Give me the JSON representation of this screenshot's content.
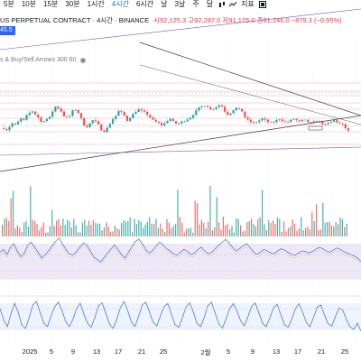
{
  "toolbar": {
    "timeframes": [
      {
        "label": "5분",
        "active": false
      },
      {
        "label": "10분",
        "active": false
      },
      {
        "label": "15분",
        "active": false
      },
      {
        "label": "30분",
        "active": false
      },
      {
        "label": "1시간",
        "active": false
      },
      {
        "label": "4시간",
        "active": true
      },
      {
        "label": "6시간",
        "active": false
      },
      {
        "label": "날",
        "active": false
      },
      {
        "label": "3날",
        "active": false
      },
      {
        "label": "주",
        "active": false
      },
      {
        "label": "달",
        "active": false
      }
    ],
    "indicators_label": "지표",
    "icons": [
      "bar-style-icon",
      "indicators-icon",
      "templates-icon"
    ]
  },
  "header": {
    "title": "US PERPETUAL CONTRACT · 4시간 · BINANCE",
    "ohlc": "시92,125.3  고92,287.0  저91,176.0  종91,246.0  −879.3 (−0.95%)",
    "price_badge": "45.5",
    "indicator_label": "s & Buy/Sell Arrows 300 60",
    "indicator_icon": "eye-icon"
  },
  "colors": {
    "up": "#26a69a",
    "down": "#ef5350",
    "trendline": "#3a3a3a",
    "channel": "#7e57c2",
    "hline": "#f7a8b8",
    "rsi_line": "#5b7fd8",
    "stoch_line": "#4a7bd4",
    "band_fill": "#ede7f6",
    "accent": "#2962ff"
  },
  "chart_data": {
    "type": "candlestick",
    "xaxis_labels": [
      "2025",
      "5",
      "9",
      "13",
      "17",
      "21",
      "25",
      "2월",
      "5",
      "9",
      "13",
      "17",
      "21",
      "25"
    ],
    "candle_trend": [
      93,
      92,
      94,
      96,
      95,
      97,
      99,
      98,
      101,
      103,
      104,
      102,
      100,
      97,
      98,
      99,
      100,
      104,
      107,
      106,
      104,
      101,
      100,
      101,
      104,
      105,
      103,
      99,
      95,
      94,
      96,
      98,
      97,
      95,
      92,
      91,
      93,
      96,
      99,
      101,
      104,
      103,
      101,
      98,
      100,
      102,
      104,
      105,
      104,
      103,
      102,
      100,
      98,
      97,
      96,
      95,
      96,
      98,
      99,
      97,
      96,
      96,
      97,
      98,
      99,
      100,
      102,
      104,
      106,
      107,
      108,
      107,
      105,
      106,
      107,
      108,
      107,
      104,
      102,
      103,
      105,
      106,
      105,
      104,
      100,
      98,
      97,
      96,
      97,
      98,
      99,
      98,
      97,
      96,
      97,
      98,
      99,
      98,
      97,
      97,
      98,
      99,
      98,
      97,
      98,
      98,
      97,
      96,
      97,
      98,
      97,
      96,
      95,
      96,
      97,
      98,
      97,
      96,
      95,
      93,
      91
    ],
    "rsi": [
      48,
      52,
      45,
      55,
      60,
      50,
      42,
      47,
      58,
      62,
      55,
      48,
      40,
      45,
      50,
      57,
      63,
      68,
      60,
      52,
      46,
      44,
      49,
      55,
      61,
      58,
      50,
      42,
      38,
      35,
      41,
      47,
      53,
      58,
      52,
      45,
      40,
      48,
      56,
      63,
      66,
      60,
      52,
      47,
      51,
      57,
      62,
      58,
      53,
      50,
      46,
      44,
      48,
      52,
      49,
      45,
      47,
      52,
      55,
      50,
      46,
      48,
      53,
      58,
      62,
      66,
      61,
      55,
      50,
      53,
      57,
      60,
      55,
      49,
      45,
      48,
      52,
      50,
      47,
      46,
      50,
      53,
      51,
      48,
      45,
      44,
      47,
      50,
      49,
      47,
      49,
      52,
      55,
      53,
      50,
      48,
      51,
      54,
      52,
      49,
      47,
      45,
      43,
      40,
      35
    ],
    "stoch": [
      70,
      40,
      20,
      55,
      85,
      60,
      25,
      15,
      45,
      80,
      90,
      60,
      30,
      20,
      50,
      75,
      88,
      65,
      35,
      20,
      40,
      70,
      85,
      55,
      30,
      18,
      45,
      78,
      86,
      58,
      28,
      15,
      40,
      72,
      90,
      66,
      34,
      20,
      48,
      80,
      88,
      60,
      32,
      22,
      50,
      76,
      84,
      56,
      26,
      18,
      44,
      74,
      86,
      62,
      30,
      20,
      46,
      78,
      88,
      58,
      28,
      16,
      42,
      70,
      84,
      64,
      36,
      22,
      48,
      76,
      86,
      58,
      30,
      20,
      44,
      72,
      82,
      54,
      26,
      18,
      40,
      70,
      84,
      60,
      32,
      20,
      46,
      74,
      80,
      52,
      28,
      22,
      48,
      72,
      66,
      40,
      20,
      12,
      30,
      8
    ]
  }
}
